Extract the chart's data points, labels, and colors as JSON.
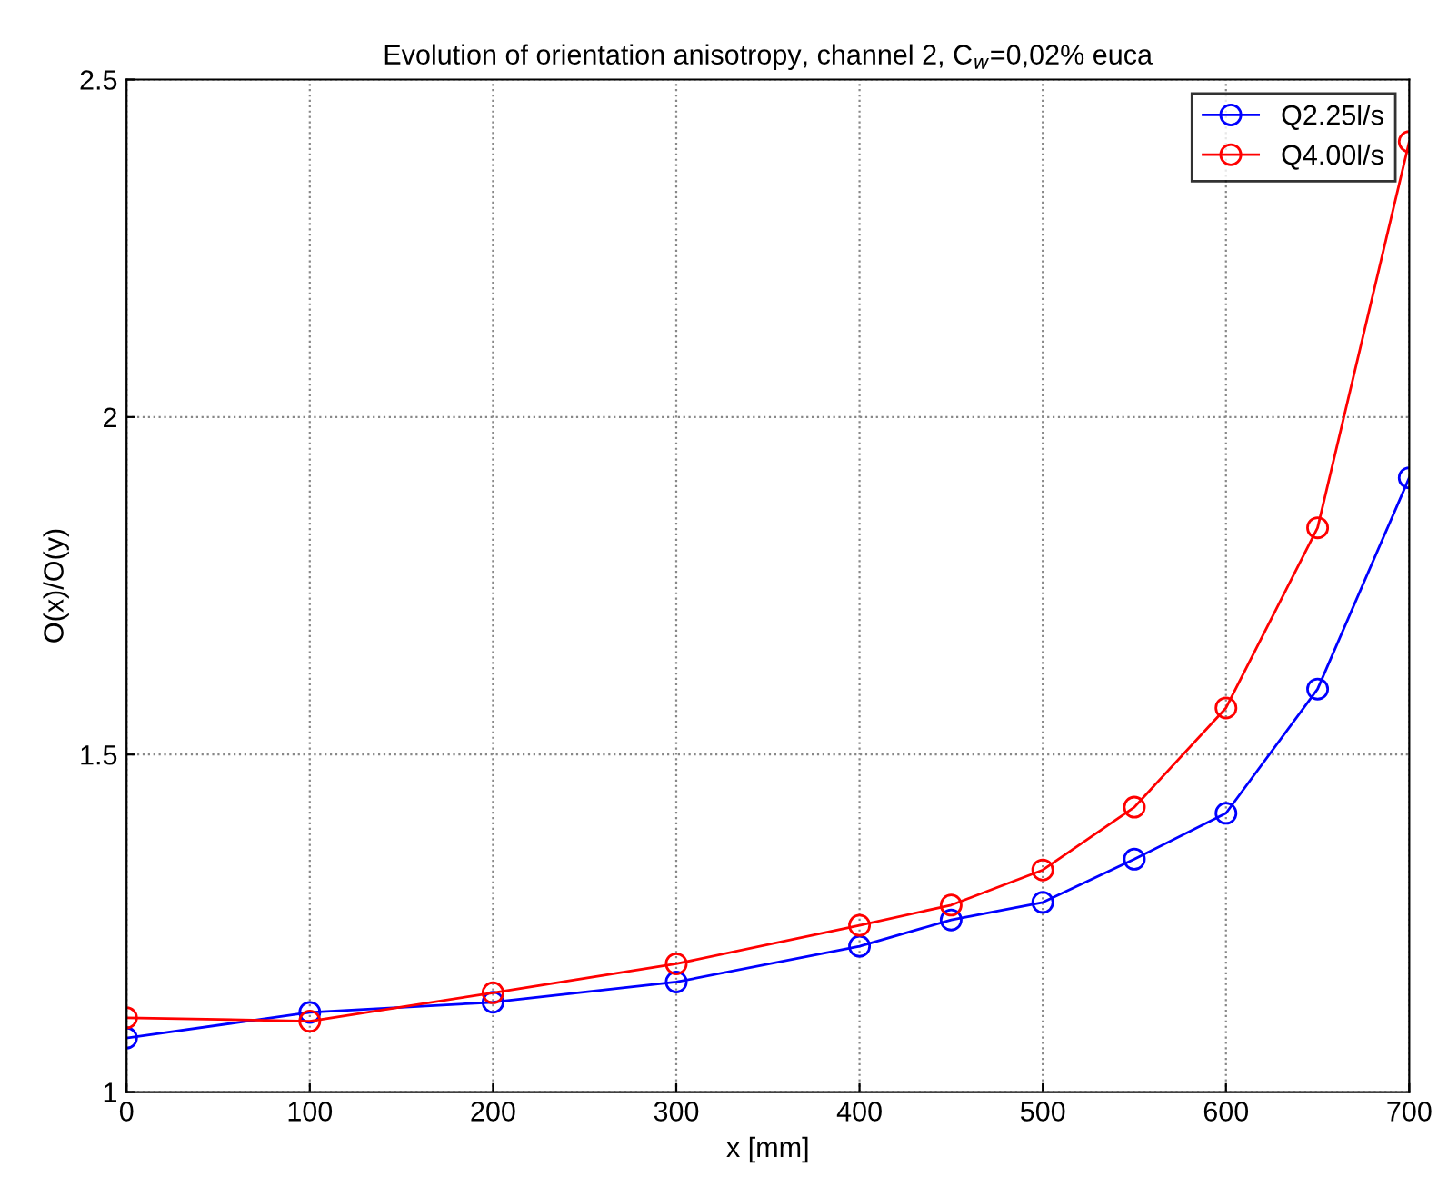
{
  "chart_data": {
    "type": "line",
    "title": "Evolution of orientation anisotropy, channel 2, C$_{w}$=0,02% euca",
    "xlabel": "x [mm]",
    "ylabel": "O(x)/O(y)",
    "x": [
      0,
      100,
      200,
      300,
      400,
      450,
      500,
      550,
      600,
      650,
      700
    ],
    "series": [
      {
        "name": "Q2.25l/s",
        "color": "#0000ff",
        "values": [
          1.08,
          1.118,
          1.133,
          1.163,
          1.216,
          1.255,
          1.281,
          1.345,
          1.413,
          1.597,
          1.91
        ]
      },
      {
        "name": "Q4.00l/s",
        "color": "#ff0000",
        "values": [
          1.11,
          1.105,
          1.147,
          1.19,
          1.247,
          1.277,
          1.329,
          1.422,
          1.569,
          1.836,
          2.408
        ]
      }
    ],
    "xlim": [
      0,
      700
    ],
    "ylim": [
      1,
      2.5
    ],
    "xticks": [
      0,
      100,
      200,
      300,
      400,
      500,
      600,
      700
    ],
    "yticks": [
      1,
      1.5,
      2,
      2.5
    ],
    "grid": true,
    "legend": "top right",
    "marker": "circle",
    "line_style": "solid"
  }
}
